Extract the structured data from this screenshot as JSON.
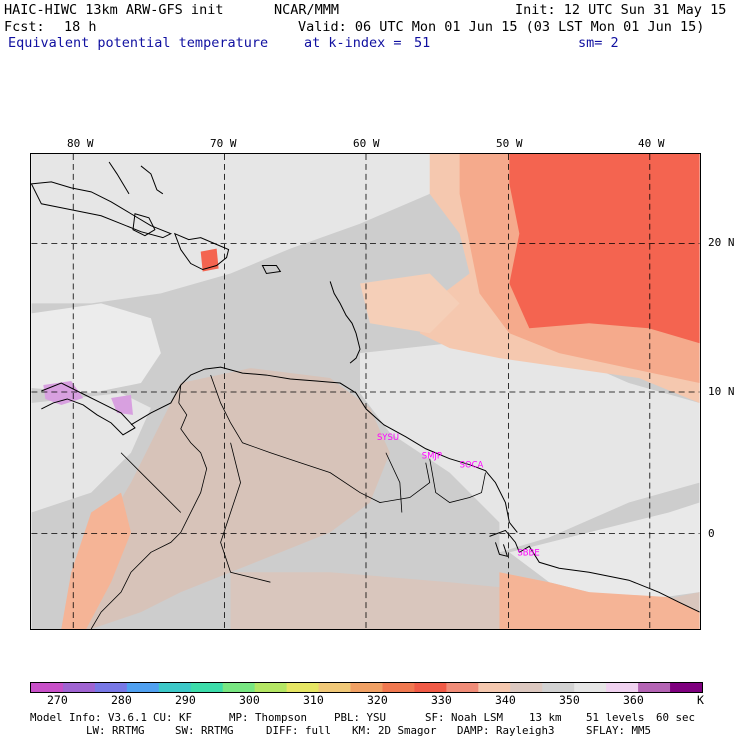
{
  "header": {
    "title": "HAIC-HIWC 13km ARW-GFS init",
    "org": "NCAR/MMM",
    "init": "Init: 12 UTC Sun 31 May 15",
    "fcst_label": "Fcst:",
    "fcst_value": "18 h",
    "valid": "Valid: 06 UTC Mon 01 Jun 15 (03 LST Mon 01 Jun 15)",
    "field": "Equivalent potential temperature",
    "level": "at k-index =",
    "level_value": "51",
    "smooth": "sm= 2"
  },
  "map": {
    "lon_labels": [
      "80 W",
      "70 W",
      "60 W",
      "50 W",
      "40 W"
    ],
    "lat_labels": [
      "20 N",
      "10 N",
      "0"
    ],
    "stations": [
      "SYSU",
      "SMJP",
      "SOCA",
      "SBBE"
    ],
    "colors": {
      "pale_lavender": "#f0dcf0",
      "lavender": "#d8a0e0",
      "light_gray": "#e6e6e6",
      "gray": "#cdcdcd",
      "warm_gray": "#d7c3b9",
      "peach": "#f5c8af",
      "salmon": "#f5aa8c",
      "red": "#f46450",
      "station_text": "#ff00ff"
    }
  },
  "colorbar": {
    "colors": [
      "#c850c8",
      "#a064d2",
      "#7878e6",
      "#50a0f0",
      "#3cc8c8",
      "#3cdcaa",
      "#78e682",
      "#b4e664",
      "#e6e664",
      "#f0c878",
      "#f0a064",
      "#f07850",
      "#f05a46",
      "#f08c78",
      "#f5c8af",
      "#dcc8c0",
      "#d2d2d2",
      "#e6e6e6",
      "#f0d2f0",
      "#b464b4",
      "#7f007f"
    ],
    "labels": [
      "270",
      "280",
      "290",
      "300",
      "310",
      "320",
      "330",
      "340",
      "350",
      "360"
    ],
    "unit": "K"
  },
  "model_info": {
    "line1": [
      "Model Info: V3.6.1",
      "CU: KF",
      "MP: Thompson",
      "PBL: YSU",
      "SF: Noah LSM",
      "13 km",
      "51 levels",
      "60 sec"
    ],
    "line2": [
      "LW: RRTMG",
      "SW: RRTMG",
      "DIFF: full",
      "KM: 2D Smagor",
      "DAMP: Rayleigh3",
      "SFLAY: MM5"
    ]
  }
}
